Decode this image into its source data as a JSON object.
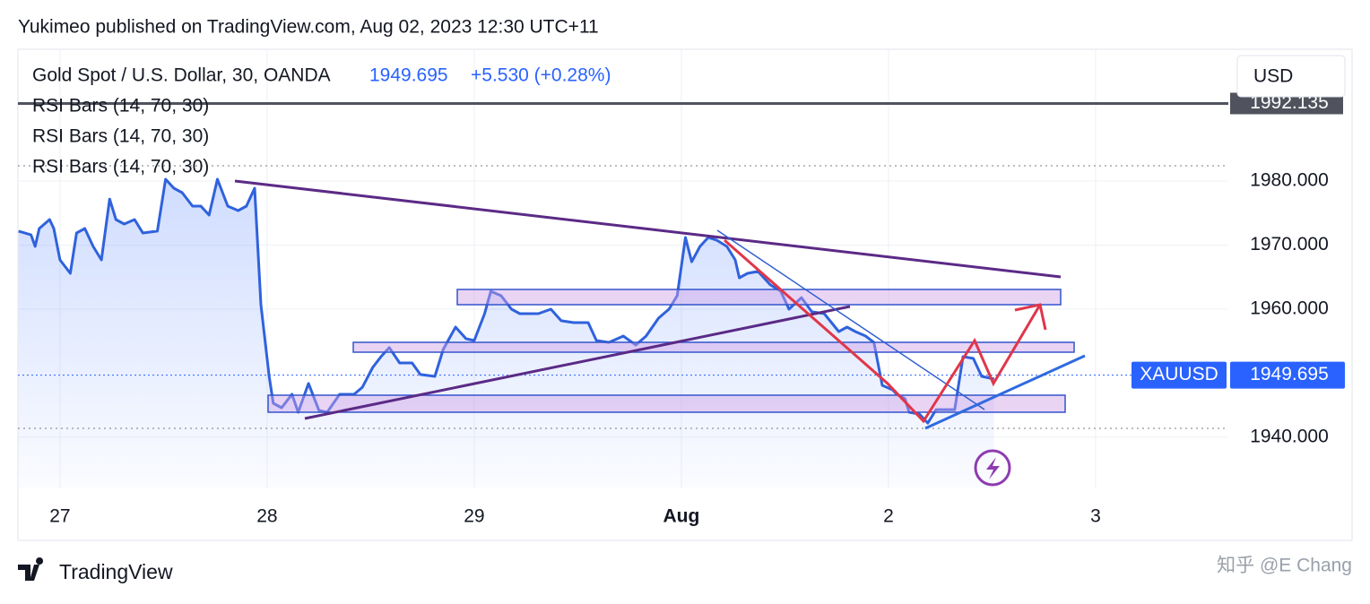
{
  "publish_note": "Yukimeo published on TradingView.com, Aug 02, 2023 12:30 UTC+11",
  "currency": "USD",
  "indicators": [
    "RSI Bars (14, 70, 30)",
    "RSI Bars (14, 70, 30)",
    "RSI Bars (14, 70, 30)"
  ],
  "brand": "TradingView",
  "watermark": "知乎 @E Chang",
  "chart_data": {
    "type": "line",
    "title": "Gold Spot / U.S. Dollar, 30, OANDA",
    "last": 1949.695,
    "change_label": "+5.530 (+0.28%)",
    "symbol": "XAUUSD",
    "hline_value": 1992.135,
    "color": "#2f62dc",
    "grid": true,
    "x": [
      -0.2,
      -0.14,
      -0.12,
      -0.1,
      -0.05,
      -0.03,
      0.0,
      0.05,
      0.08,
      0.12,
      0.16,
      0.2,
      0.24,
      0.27,
      0.31,
      0.36,
      0.4,
      0.47,
      0.51,
      0.55,
      0.59,
      0.64,
      0.68,
      0.72,
      0.76,
      0.81,
      0.86,
      0.9,
      0.94,
      0.97,
      1.01,
      1.03,
      1.07,
      1.12,
      1.15,
      1.2,
      1.25,
      1.29,
      1.35,
      1.42,
      1.46,
      1.51,
      1.55,
      1.59,
      1.64,
      1.7,
      1.74,
      1.81,
      1.85,
      1.91,
      1.96,
      2.0,
      2.05,
      2.08,
      2.13,
      2.18,
      2.22,
      2.31,
      2.37,
      2.42,
      2.48,
      2.55,
      2.59,
      2.65,
      2.72,
      2.78,
      2.83,
      2.89,
      2.94,
      2.98,
      3.02,
      3.05,
      3.09,
      3.13,
      3.17,
      3.22,
      3.26,
      3.28,
      3.32,
      3.37,
      3.43,
      3.48,
      3.52,
      3.58,
      3.63,
      3.69,
      3.76,
      3.8,
      3.84,
      3.89,
      3.93,
      3.97,
      4.02,
      4.04,
      4.08,
      4.1,
      4.15,
      4.19,
      4.23,
      4.32,
      4.36,
      4.41,
      4.45,
      4.51
    ],
    "values": [
      1972.2,
      1971.6,
      1969.8,
      1972.6,
      1974.0,
      1972.6,
      1967.7,
      1965.6,
      1971.9,
      1972.6,
      1969.8,
      1967.7,
      1977.2,
      1974.0,
      1973.3,
      1974.0,
      1971.9,
      1972.2,
      1980.3,
      1978.9,
      1978.2,
      1976.1,
      1976.1,
      1974.7,
      1980.3,
      1976.1,
      1975.4,
      1976.1,
      1978.9,
      1960.7,
      1949.5,
      1945.3,
      1944.6,
      1946.7,
      1943.9,
      1948.4,
      1944.2,
      1943.9,
      1946.7,
      1946.7,
      1947.8,
      1950.9,
      1952.6,
      1954.0,
      1951.6,
      1951.6,
      1949.8,
      1949.5,
      1953.7,
      1957.2,
      1955.4,
      1955.1,
      1959.3,
      1962.8,
      1962.1,
      1960.0,
      1959.3,
      1959.3,
      1960.0,
      1958.2,
      1957.9,
      1957.9,
      1955.1,
      1954.8,
      1955.8,
      1954.4,
      1955.8,
      1958.6,
      1960.0,
      1962.1,
      1971.2,
      1967.4,
      1969.8,
      1971.2,
      1970.8,
      1969.8,
      1967.7,
      1964.9,
      1965.6,
      1965.9,
      1963.8,
      1962.8,
      1960.0,
      1961.8,
      1959.6,
      1959.3,
      1956.5,
      1957.2,
      1956.5,
      1955.8,
      1954.8,
      1948.1,
      1947.4,
      1946.7,
      1946.0,
      1943.9,
      1943.6,
      1942.2,
      1944.3,
      1944.3,
      1952.6,
      1952.3,
      1949.5,
      1949.1
    ],
    "xlim": [
      -0.203,
      5.641
    ],
    "ylim": [
      1932.0,
      2000.6
    ],
    "xticks": [
      {
        "value": 0,
        "label": "27"
      },
      {
        "value": 1,
        "label": "28"
      },
      {
        "value": 2,
        "label": "29"
      },
      {
        "value": 3,
        "label": "Aug"
      },
      {
        "value": 4,
        "label": "2"
      },
      {
        "value": 5,
        "label": "3"
      }
    ],
    "yticks": [
      {
        "value": 1940,
        "label": "1940.000"
      },
      {
        "value": 1960,
        "label": "1960.000"
      },
      {
        "value": 1970,
        "label": "1970.000"
      },
      {
        "value": 1980,
        "label": "1980.000"
      }
    ]
  }
}
